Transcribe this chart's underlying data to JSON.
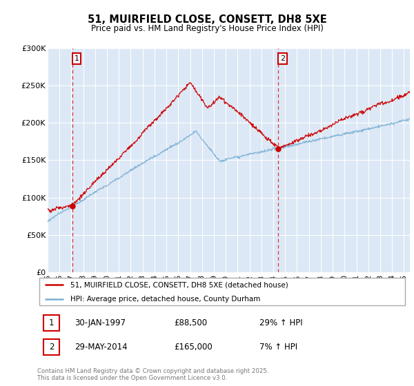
{
  "title_line1": "51, MUIRFIELD CLOSE, CONSETT, DH8 5XE",
  "title_line2": "Price paid vs. HM Land Registry's House Price Index (HPI)",
  "legend_label_red": "51, MUIRFIELD CLOSE, CONSETT, DH8 5XE (detached house)",
  "legend_label_blue": "HPI: Average price, detached house, County Durham",
  "annotation1_date": "30-JAN-1997",
  "annotation1_price": "£88,500",
  "annotation1_hpi": "29% ↑ HPI",
  "annotation2_date": "29-MAY-2014",
  "annotation2_price": "£165,000",
  "annotation2_hpi": "7% ↑ HPI",
  "copyright": "Contains HM Land Registry data © Crown copyright and database right 2025.\nThis data is licensed under the Open Government Licence v3.0.",
  "red_color": "#cc0000",
  "blue_color": "#7bafd4",
  "vline_color": "#dd3333",
  "background_color": "#dce8f5",
  "ylim": [
    0,
    300000
  ],
  "yticks": [
    0,
    50000,
    100000,
    150000,
    200000,
    250000,
    300000
  ],
  "ytick_labels": [
    "£0",
    "£50K",
    "£100K",
    "£150K",
    "£200K",
    "£250K",
    "£300K"
  ],
  "purchase1_year": 1997.08,
  "purchase1_price": 88500,
  "purchase2_year": 2014.41,
  "purchase2_price": 165000,
  "xstart": 1995,
  "xend": 2025.5
}
